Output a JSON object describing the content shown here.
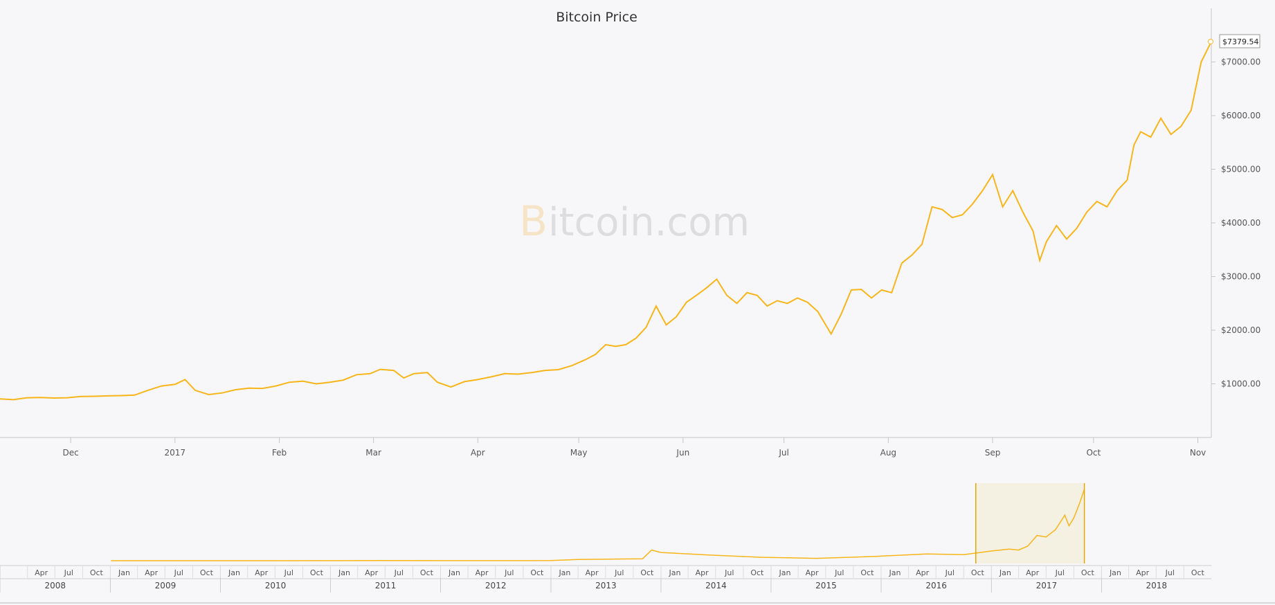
{
  "chart_data": {
    "type": "line",
    "title": "Bitcoin Price",
    "currency_format": "$",
    "main": {
      "series": [
        {
          "name": "Bitcoin Price",
          "color": "#f7b519",
          "points": [
            [
              "2016-11-10",
              720
            ],
            [
              "2016-11-14",
              705
            ],
            [
              "2016-11-18",
              740
            ],
            [
              "2016-11-22",
              745
            ],
            [
              "2016-11-26",
              735
            ],
            [
              "2016-11-30",
              740
            ],
            [
              "2016-12-04",
              765
            ],
            [
              "2016-12-08",
              768
            ],
            [
              "2016-12-12",
              775
            ],
            [
              "2016-12-16",
              780
            ],
            [
              "2016-12-20",
              790
            ],
            [
              "2016-12-24",
              880
            ],
            [
              "2016-12-28",
              960
            ],
            [
              "2017-01-01",
              990
            ],
            [
              "2017-01-04",
              1080
            ],
            [
              "2017-01-07",
              880
            ],
            [
              "2017-01-11",
              800
            ],
            [
              "2017-01-15",
              830
            ],
            [
              "2017-01-19",
              890
            ],
            [
              "2017-01-23",
              920
            ],
            [
              "2017-01-27",
              915
            ],
            [
              "2017-01-31",
              960
            ],
            [
              "2017-02-04",
              1030
            ],
            [
              "2017-02-08",
              1050
            ],
            [
              "2017-02-12",
              1000
            ],
            [
              "2017-02-16",
              1030
            ],
            [
              "2017-02-20",
              1070
            ],
            [
              "2017-02-24",
              1170
            ],
            [
              "2017-02-28",
              1190
            ],
            [
              "2017-03-03",
              1270
            ],
            [
              "2017-03-07",
              1250
            ],
            [
              "2017-03-10",
              1110
            ],
            [
              "2017-03-13",
              1190
            ],
            [
              "2017-03-17",
              1210
            ],
            [
              "2017-03-20",
              1030
            ],
            [
              "2017-03-24",
              940
            ],
            [
              "2017-03-28",
              1040
            ],
            [
              "2017-04-01",
              1080
            ],
            [
              "2017-04-05",
              1130
            ],
            [
              "2017-04-09",
              1190
            ],
            [
              "2017-04-13",
              1180
            ],
            [
              "2017-04-17",
              1210
            ],
            [
              "2017-04-21",
              1250
            ],
            [
              "2017-04-25",
              1265
            ],
            [
              "2017-04-29",
              1340
            ],
            [
              "2017-05-03",
              1450
            ],
            [
              "2017-05-06",
              1550
            ],
            [
              "2017-05-09",
              1730
            ],
            [
              "2017-05-12",
              1700
            ],
            [
              "2017-05-15",
              1730
            ],
            [
              "2017-05-18",
              1850
            ],
            [
              "2017-05-21",
              2050
            ],
            [
              "2017-05-24",
              2450
            ],
            [
              "2017-05-27",
              2100
            ],
            [
              "2017-05-30",
              2250
            ],
            [
              "2017-06-02",
              2520
            ],
            [
              "2017-06-05",
              2650
            ],
            [
              "2017-06-08",
              2790
            ],
            [
              "2017-06-11",
              2950
            ],
            [
              "2017-06-14",
              2650
            ],
            [
              "2017-06-17",
              2500
            ],
            [
              "2017-06-20",
              2700
            ],
            [
              "2017-06-23",
              2650
            ],
            [
              "2017-06-26",
              2450
            ],
            [
              "2017-06-29",
              2550
            ],
            [
              "2017-07-02",
              2500
            ],
            [
              "2017-07-05",
              2600
            ],
            [
              "2017-07-08",
              2520
            ],
            [
              "2017-07-11",
              2350
            ],
            [
              "2017-07-15",
              1930
            ],
            [
              "2017-07-18",
              2300
            ],
            [
              "2017-07-21",
              2750
            ],
            [
              "2017-07-24",
              2760
            ],
            [
              "2017-07-27",
              2600
            ],
            [
              "2017-07-30",
              2750
            ],
            [
              "2017-08-02",
              2700
            ],
            [
              "2017-08-05",
              3250
            ],
            [
              "2017-08-08",
              3400
            ],
            [
              "2017-08-11",
              3600
            ],
            [
              "2017-08-14",
              4300
            ],
            [
              "2017-08-17",
              4250
            ],
            [
              "2017-08-20",
              4100
            ],
            [
              "2017-08-23",
              4150
            ],
            [
              "2017-08-26",
              4350
            ],
            [
              "2017-08-29",
              4600
            ],
            [
              "2017-09-01",
              4900
            ],
            [
              "2017-09-04",
              4300
            ],
            [
              "2017-09-07",
              4600
            ],
            [
              "2017-09-10",
              4200
            ],
            [
              "2017-09-13",
              3850
            ],
            [
              "2017-09-15",
              3300
            ],
            [
              "2017-09-17",
              3650
            ],
            [
              "2017-09-20",
              3950
            ],
            [
              "2017-09-23",
              3700
            ],
            [
              "2017-09-26",
              3900
            ],
            [
              "2017-09-29",
              4200
            ],
            [
              "2017-10-02",
              4400
            ],
            [
              "2017-10-05",
              4300
            ],
            [
              "2017-10-08",
              4600
            ],
            [
              "2017-10-11",
              4800
            ],
            [
              "2017-10-13",
              5450
            ],
            [
              "2017-10-15",
              5700
            ],
            [
              "2017-10-18",
              5600
            ],
            [
              "2017-10-21",
              5950
            ],
            [
              "2017-10-24",
              5650
            ],
            [
              "2017-10-27",
              5800
            ],
            [
              "2017-10-30",
              6100
            ],
            [
              "2017-11-02",
              7000
            ],
            [
              "2017-11-05",
              7379.54
            ]
          ]
        }
      ],
      "ylim": [
        0,
        8000
      ],
      "yticks": [
        "$1000.00",
        "$2000.00",
        "$3000.00",
        "$4000.00",
        "$5000.00",
        "$6000.00",
        "$7000.00"
      ],
      "ytick_values": [
        1000,
        2000,
        3000,
        4000,
        5000,
        6000,
        7000
      ],
      "xticks": [
        {
          "label": "Dec",
          "date": "2016-12-01"
        },
        {
          "label": "2017",
          "date": "2017-01-01"
        },
        {
          "label": "Feb",
          "date": "2017-02-01"
        },
        {
          "label": "Mar",
          "date": "2017-03-01"
        },
        {
          "label": "Apr",
          "date": "2017-04-01"
        },
        {
          "label": "May",
          "date": "2017-05-01"
        },
        {
          "label": "Jun",
          "date": "2017-06-01"
        },
        {
          "label": "Jul",
          "date": "2017-07-01"
        },
        {
          "label": "Aug",
          "date": "2017-08-01"
        },
        {
          "label": "Sep",
          "date": "2017-09-01"
        },
        {
          "label": "Oct",
          "date": "2017-10-01"
        },
        {
          "label": "Nov",
          "date": "2017-11-01"
        }
      ],
      "x_range": [
        "2016-11-10",
        "2017-11-05"
      ],
      "last_value_label": "$7379.54"
    },
    "navigator": {
      "x_range": [
        "2008-01-01",
        "2018-12-31"
      ],
      "ylim": [
        0,
        8000
      ],
      "series_points": [
        [
          "2009-01-03",
          0
        ],
        [
          "2010-07-01",
          0.1
        ],
        [
          "2011-06-01",
          15
        ],
        [
          "2012-01-01",
          5
        ],
        [
          "2013-01-01",
          13
        ],
        [
          "2013-04-01",
          120
        ],
        [
          "2013-11-01",
          200
        ],
        [
          "2013-12-01",
          1100
        ],
        [
          "2014-01-01",
          850
        ],
        [
          "2014-06-01",
          600
        ],
        [
          "2014-12-01",
          350
        ],
        [
          "2015-06-01",
          240
        ],
        [
          "2015-12-01",
          430
        ],
        [
          "2016-06-01",
          700
        ],
        [
          "2016-10-01",
          620
        ],
        [
          "2017-01-01",
          1000
        ],
        [
          "2017-03-01",
          1200
        ],
        [
          "2017-04-01",
          1100
        ],
        [
          "2017-05-01",
          1500
        ],
        [
          "2017-06-01",
          2600
        ],
        [
          "2017-07-01",
          2450
        ],
        [
          "2017-08-01",
          3200
        ],
        [
          "2017-09-01",
          4700
        ],
        [
          "2017-09-15",
          3600
        ],
        [
          "2017-10-01",
          4400
        ],
        [
          "2017-10-20",
          5900
        ],
        [
          "2017-11-05",
          7379.54
        ]
      ],
      "selection": [
        "2016-11-10",
        "2017-11-05"
      ],
      "month_ticks": [
        "Apr",
        "Jul",
        "Oct",
        "Jan",
        "Apr",
        "Jul",
        "Oct",
        "Jan",
        "Apr",
        "Jul",
        "Oct",
        "Jan",
        "Apr",
        "Jul",
        "Oct",
        "Jan",
        "Apr",
        "Jul",
        "Oct",
        "Jan",
        "Apr",
        "Jul",
        "Oct",
        "Jan",
        "Apr",
        "Jul",
        "Oct",
        "Jan",
        "Apr",
        "Jul",
        "Oct",
        "Jan",
        "Apr",
        "Jul",
        "Oct",
        "Jan",
        "Apr",
        "Jul",
        "Oct",
        "Jan",
        "Apr",
        "Jul",
        "Oct"
      ],
      "years": [
        "2008",
        "2009",
        "2010",
        "2011",
        "2012",
        "2013",
        "2014",
        "2015",
        "2016",
        "2017",
        "2018"
      ]
    },
    "watermark": {
      "b": "B",
      "text": "itcoin.com"
    }
  }
}
